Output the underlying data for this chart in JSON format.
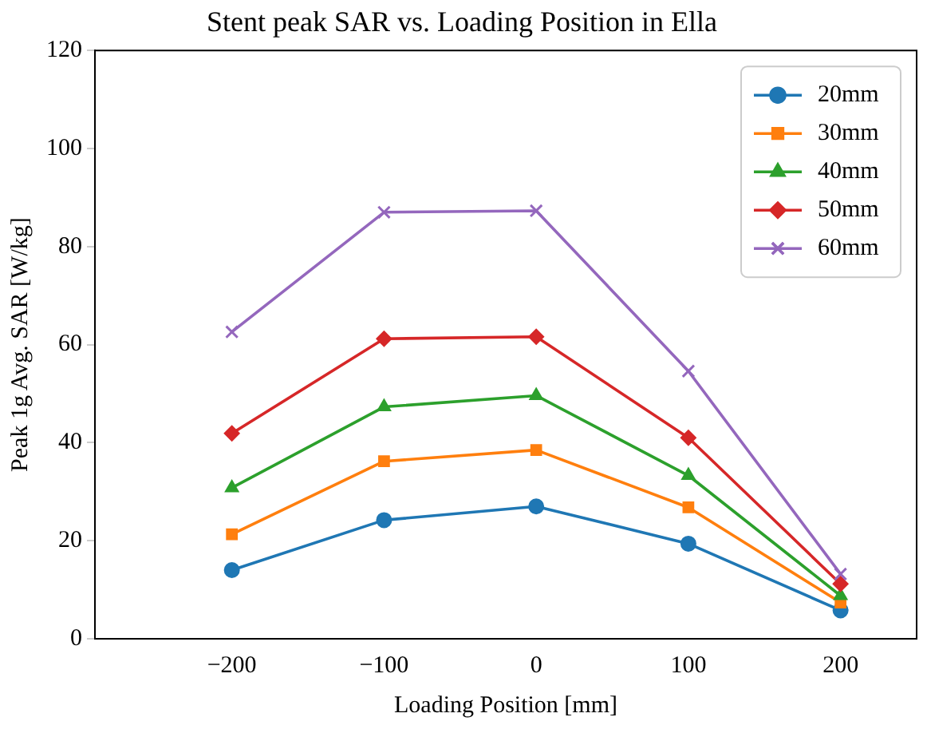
{
  "chart_data": {
    "type": "line",
    "title": "Stent peak SAR vs. Loading Position in Ella",
    "xlabel": "Loading Position [mm]",
    "ylabel": "Peak 1g Avg. SAR [W/kg]",
    "x": [
      -200,
      -100,
      0,
      100,
      200
    ],
    "xlim": [
      -290,
      250
    ],
    "xticks": [
      {
        "value": -200,
        "label": "−200"
      },
      {
        "value": -100,
        "label": "−100"
      },
      0,
      100,
      200
    ],
    "ylim": [
      0,
      120
    ],
    "yticks": [
      0,
      20,
      40,
      60,
      80,
      100,
      120
    ],
    "grid": false,
    "legend": "top right",
    "line_style": "solid",
    "series": [
      {
        "name": "20mm",
        "color": "#1f77b4",
        "marker": "circle",
        "values": [
          14,
          24.2,
          27,
          19.4,
          5.8
        ]
      },
      {
        "name": "30mm",
        "color": "#ff7f0e",
        "marker": "square",
        "values": [
          21.3,
          36.2,
          38.5,
          26.8,
          7.4
        ]
      },
      {
        "name": "40mm",
        "color": "#2ca02c",
        "marker": "triangle",
        "values": [
          30.8,
          47.3,
          49.6,
          33.3,
          8.8
        ]
      },
      {
        "name": "50mm",
        "color": "#d62728",
        "marker": "diamond",
        "values": [
          41.9,
          61.2,
          61.6,
          41,
          11.2
        ]
      },
      {
        "name": "60mm",
        "color": "#9467bd",
        "marker": "cross",
        "values": [
          62.6,
          87,
          87.3,
          54.6,
          13.2
        ]
      }
    ]
  }
}
